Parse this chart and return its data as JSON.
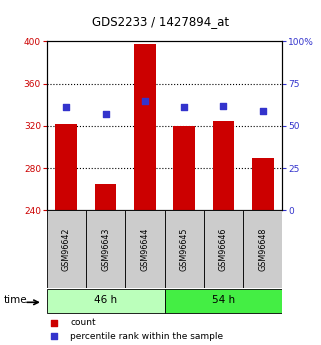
{
  "title": "GDS2233 / 1427894_at",
  "samples": [
    "GSM96642",
    "GSM96643",
    "GSM96644",
    "GSM96645",
    "GSM96646",
    "GSM96648"
  ],
  "bar_values": [
    322,
    265,
    398,
    320,
    325,
    290
  ],
  "dot_values": [
    61,
    57,
    65,
    61,
    62,
    59
  ],
  "bar_color": "#cc0000",
  "dot_color": "#3333cc",
  "ylim_left": [
    240,
    400
  ],
  "ylim_right": [
    0,
    100
  ],
  "yticks_left": [
    240,
    280,
    320,
    360,
    400
  ],
  "yticks_right": [
    0,
    25,
    50,
    75,
    100
  ],
  "grid_values": [
    280,
    320,
    360
  ],
  "group1_color": "#bbffbb",
  "group2_color": "#44ee44",
  "label_bg": "#cccccc",
  "bar_width": 0.55
}
